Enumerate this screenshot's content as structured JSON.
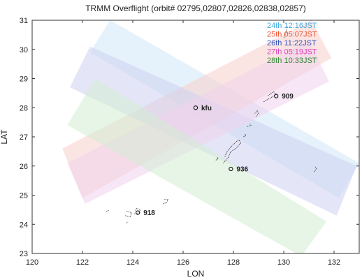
{
  "title": "TRMM Overflight",
  "subtitle": "(orbit# 02795,02807,02826,02838,02857)",
  "axes": {
    "xlabel": "LON",
    "ylabel": "LAT",
    "xlim": [
      120,
      133
    ],
    "ylim": [
      23,
      31
    ],
    "xticks": [
      "120",
      "122",
      "124",
      "126",
      "128",
      "130",
      "132"
    ],
    "yticks": [
      "23",
      "24",
      "25",
      "26",
      "27",
      "28",
      "29",
      "30",
      "31"
    ]
  },
  "legend": {
    "placement": "top-right",
    "items": [
      {
        "label": "24th 12:16JST",
        "color": "#44aadd"
      },
      {
        "label": "25th 05:07JST",
        "color": "#ee5533"
      },
      {
        "label": "26th 11:22JST",
        "color": "#3355bb"
      },
      {
        "label": "27th 05:19JST",
        "color": "#dd44bb"
      },
      {
        "label": "28th 10:33JST",
        "color": "#338833"
      }
    ]
  },
  "swaths": [
    {
      "name": "24th 12:16JST",
      "color": "#cfe6f7",
      "corners": [
        [
          122.3,
          29.9
        ],
        [
          123.1,
          31.0
        ],
        [
          133.0,
          26.1
        ],
        [
          132.2,
          24.9
        ]
      ]
    },
    {
      "name": "25th 05:07JST",
      "color": "#f7d0cc",
      "corners": [
        [
          121.2,
          26.6
        ],
        [
          122.0,
          24.9
        ],
        [
          131.9,
          29.7
        ],
        [
          131.1,
          31.0
        ]
      ]
    },
    {
      "name": "26th 11:22JST",
      "color": "#cdd2f0",
      "corners": [
        [
          121.5,
          28.7
        ],
        [
          122.3,
          30.1
        ],
        [
          132.9,
          26.0
        ],
        [
          132.1,
          24.3
        ]
      ]
    },
    {
      "name": "27th 05:19JST",
      "color": "#f1d2ec",
      "corners": [
        [
          121.4,
          26.1
        ],
        [
          122.1,
          24.7
        ],
        [
          131.8,
          28.9
        ],
        [
          131.0,
          30.3
        ]
      ]
    },
    {
      "name": "28th 10:33JST",
      "color": "#d3ecd3",
      "corners": [
        [
          121.4,
          27.4
        ],
        [
          122.5,
          29.0
        ],
        [
          131.7,
          24.1
        ],
        [
          130.7,
          22.9
        ]
      ]
    }
  ],
  "stations": [
    {
      "name": "kfu",
      "lon": 126.5,
      "lat": 28.0
    },
    {
      "name": "909",
      "lon": 129.7,
      "lat": 28.4
    },
    {
      "name": "936",
      "lon": 127.9,
      "lat": 25.9
    },
    {
      "name": "918",
      "lon": 124.2,
      "lat": 24.4
    }
  ],
  "islands": [
    {
      "name": "okinawa",
      "points": [
        [
          127.6,
          26.1
        ],
        [
          127.8,
          26.3
        ],
        [
          127.9,
          26.5
        ],
        [
          128.1,
          26.6
        ],
        [
          128.3,
          26.8
        ],
        [
          128.2,
          26.9
        ],
        [
          127.95,
          26.7
        ],
        [
          127.75,
          26.5
        ],
        [
          127.65,
          26.3
        ]
      ]
    },
    {
      "name": "kerama",
      "points": [
        [
          127.3,
          26.2
        ],
        [
          127.4,
          26.25
        ],
        [
          127.35,
          26.3
        ]
      ]
    },
    {
      "name": "amami-oshima",
      "points": [
        [
          129.2,
          28.2
        ],
        [
          129.4,
          28.3
        ],
        [
          129.7,
          28.45
        ],
        [
          129.6,
          28.55
        ],
        [
          129.35,
          28.4
        ]
      ]
    },
    {
      "name": "tokunoshima",
      "points": [
        [
          128.9,
          27.7
        ],
        [
          129.0,
          27.8
        ],
        [
          128.95,
          27.9
        ],
        [
          128.85,
          27.8
        ]
      ]
    },
    {
      "name": "okinoerabu",
      "points": [
        [
          128.55,
          27.35
        ],
        [
          128.7,
          27.4
        ],
        [
          128.65,
          27.45
        ]
      ]
    },
    {
      "name": "yoron",
      "points": [
        [
          128.4,
          27.0
        ],
        [
          128.5,
          27.05
        ],
        [
          128.45,
          27.1
        ]
      ]
    },
    {
      "name": "tanegashima",
      "points": [
        [
          130.0,
          30.4
        ],
        [
          130.1,
          30.6
        ],
        [
          130.15,
          30.8
        ]
      ]
    },
    {
      "name": "ishigaki",
      "points": [
        [
          124.05,
          24.35
        ],
        [
          124.25,
          24.4
        ],
        [
          124.3,
          24.5
        ],
        [
          124.15,
          24.55
        ],
        [
          124.1,
          24.45
        ]
      ]
    },
    {
      "name": "iriomote",
      "points": [
        [
          123.7,
          24.3
        ],
        [
          123.9,
          24.25
        ],
        [
          123.95,
          24.4
        ],
        [
          123.75,
          24.45
        ]
      ]
    },
    {
      "name": "yonaguni",
      "points": [
        [
          122.95,
          24.45
        ],
        [
          123.05,
          24.47
        ]
      ]
    },
    {
      "name": "miyako",
      "points": [
        [
          125.2,
          24.7
        ],
        [
          125.35,
          24.75
        ],
        [
          125.4,
          24.85
        ],
        [
          125.25,
          24.85
        ]
      ]
    },
    {
      "name": "hateruma",
      "points": [
        [
          123.75,
          24.05
        ],
        [
          123.82,
          24.07
        ]
      ]
    },
    {
      "name": "daito",
      "points": [
        [
          131.2,
          25.8
        ],
        [
          131.3,
          25.9
        ],
        [
          131.25,
          26.0
        ]
      ]
    }
  ]
}
